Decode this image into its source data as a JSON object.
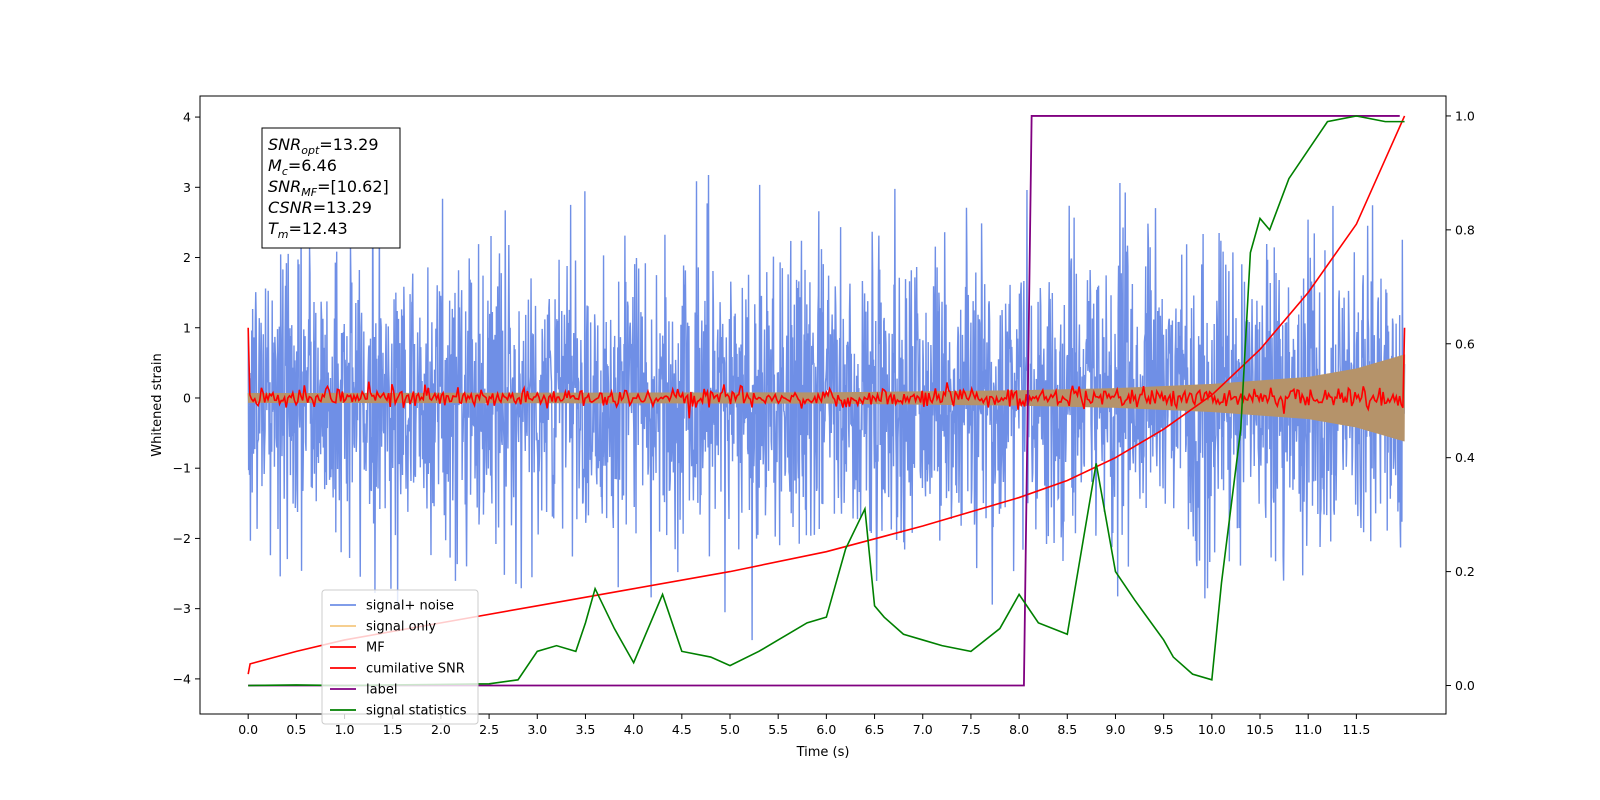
{
  "chart_data": {
    "type": "line",
    "xlabel": "Time (s)",
    "ylabel_left": "Whitened strain",
    "ylabel_right": "",
    "xlim": [
      -0.5,
      12.43
    ],
    "ylim_left": [
      -4.5,
      4.3
    ],
    "ylim_right": [
      -0.05,
      1.035
    ],
    "x_ticks": [
      0.0,
      0.5,
      1.0,
      1.5,
      2.0,
      2.5,
      3.0,
      3.5,
      4.0,
      4.5,
      5.0,
      5.5,
      6.0,
      6.5,
      7.0,
      7.5,
      8.0,
      8.5,
      9.0,
      9.5,
      10.0,
      10.5,
      11.0,
      11.5
    ],
    "x_tick_labels": [
      "0.0",
      "0.5",
      "1.0",
      "1.5",
      "2.0",
      "2.5",
      "3.0",
      "3.5",
      "4.0",
      "4.5",
      "5.0",
      "5.5",
      "6.0",
      "6.5",
      "7.0",
      "7.5",
      "8.0",
      "8.5",
      "9.0",
      "9.5",
      "10.0",
      "10.5",
      "11.0",
      "11.5"
    ],
    "y_left_ticks": [
      4,
      3,
      2,
      1,
      0,
      -1,
      -2,
      -3,
      -4
    ],
    "y_left_tick_labels": [
      "4",
      "3",
      "2",
      "1",
      "0",
      "−1",
      "−2",
      "−3",
      "−4"
    ],
    "y_right_ticks": [
      1.0,
      0.8,
      0.6,
      0.4,
      0.2,
      0.0
    ],
    "y_right_tick_labels": [
      "1.0",
      "0.8",
      "0.6",
      "0.4",
      "0.2",
      "0.0"
    ],
    "grid": false,
    "legend_position": "lower-left",
    "legend": [
      {
        "label": "signal+ noise",
        "color": "#6f8fe6"
      },
      {
        "label": "signal only",
        "color": "#f5c880"
      },
      {
        "label": "MF",
        "color": "#ff0000"
      },
      {
        "label": "cumilative SNR",
        "color": "#ff0000"
      },
      {
        "label": "label",
        "color": "#800080"
      },
      {
        "label": "signal statistics",
        "color": "#008000"
      }
    ],
    "annotation_box": [
      {
        "name": "SNR",
        "sub": "opt",
        "value": "=13.29"
      },
      {
        "name": "M",
        "sub": "c",
        "value": "=6.46"
      },
      {
        "name": "SNR",
        "sub": "MF",
        "value": "=[10.62]"
      },
      {
        "name": "CSNR",
        "sub": "",
        "value": "=13.29"
      },
      {
        "name": "T",
        "sub": "m",
        "value": "=12.43"
      }
    ],
    "series": [
      {
        "name": "signal+ noise",
        "axis": "left",
        "color": "#6f8fe6",
        "x_range": [
          0.0,
          12.0
        ],
        "noise_std": 1.05,
        "ylim_clip": [
          -4.15,
          3.95
        ]
      },
      {
        "name": "signal only",
        "axis": "left",
        "color": "#b5936a",
        "x": [
          0.0,
          6.0,
          8.0,
          9.0,
          10.0,
          11.0,
          11.5,
          12.0
        ],
        "amplitude": [
          0.07,
          0.08,
          0.11,
          0.14,
          0.2,
          0.3,
          0.42,
          0.62
        ]
      },
      {
        "name": "MF",
        "axis": "left",
        "color": "#ff0000",
        "x_range": [
          0.0,
          12.0
        ],
        "start_value": 1.0,
        "end_value": 1.0,
        "noise_std": 0.07
      },
      {
        "name": "cumilative SNR",
        "axis": "right",
        "color": "#ff0000",
        "x": [
          0.0,
          0.02,
          0.5,
          1.0,
          2.0,
          3.0,
          4.0,
          5.0,
          6.0,
          7.0,
          8.0,
          8.5,
          9.0,
          9.5,
          10.0,
          10.5,
          11.0,
          11.5,
          12.0
        ],
        "y": [
          0.02,
          0.038,
          0.06,
          0.08,
          0.11,
          0.14,
          0.17,
          0.2,
          0.235,
          0.28,
          0.33,
          0.36,
          0.4,
          0.45,
          0.51,
          0.59,
          0.69,
          0.81,
          1.0
        ]
      },
      {
        "name": "label",
        "axis": "right",
        "color": "#800080",
        "x": [
          0.0,
          8.05,
          8.13,
          11.95
        ],
        "y": [
          0.0,
          0.0,
          1.0,
          1.0
        ]
      },
      {
        "name": "signal statistics",
        "axis": "right",
        "color": "#008000",
        "x": [
          0.0,
          0.5,
          1.0,
          1.5,
          2.0,
          2.5,
          2.8,
          3.0,
          3.2,
          3.4,
          3.5,
          3.6,
          3.8,
          4.0,
          4.2,
          4.3,
          4.5,
          4.8,
          5.0,
          5.3,
          5.5,
          5.8,
          6.0,
          6.2,
          6.4,
          6.5,
          6.6,
          6.8,
          7.0,
          7.2,
          7.5,
          7.8,
          8.0,
          8.2,
          8.5,
          8.8,
          9.0,
          9.2,
          9.5,
          9.6,
          9.8,
          10.0,
          10.1,
          10.3,
          10.4,
          10.5,
          10.6,
          10.8,
          11.0,
          11.2,
          11.5,
          11.8,
          12.0
        ],
        "y": [
          0.0,
          0.001,
          0.0,
          0.001,
          0.002,
          0.003,
          0.01,
          0.06,
          0.07,
          0.06,
          0.11,
          0.17,
          0.1,
          0.04,
          0.12,
          0.16,
          0.06,
          0.05,
          0.035,
          0.06,
          0.08,
          0.11,
          0.12,
          0.24,
          0.31,
          0.14,
          0.12,
          0.09,
          0.08,
          0.07,
          0.06,
          0.1,
          0.16,
          0.11,
          0.09,
          0.39,
          0.2,
          0.15,
          0.08,
          0.05,
          0.02,
          0.01,
          0.18,
          0.45,
          0.76,
          0.82,
          0.8,
          0.89,
          0.94,
          0.99,
          1.0,
          0.99,
          0.99
        ]
      }
    ]
  }
}
